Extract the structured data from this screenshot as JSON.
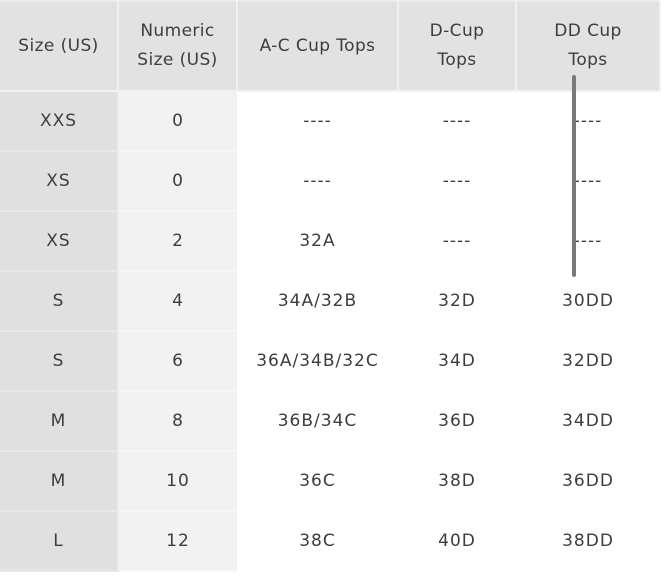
{
  "table": {
    "headers": [
      [
        "Size (US)"
      ],
      [
        "Numeric",
        "Size (US)"
      ],
      [
        "A-C Cup Tops"
      ],
      [
        "D-Cup",
        "Tops"
      ],
      [
        "DD Cup",
        "Tops"
      ]
    ],
    "rows": [
      [
        "XXS",
        "0",
        "----",
        "----",
        "----"
      ],
      [
        "XS",
        "0",
        "----",
        "----",
        "----"
      ],
      [
        "XS",
        "2",
        "32A",
        "----",
        "----"
      ],
      [
        "S",
        "4",
        "34A/32B",
        "32D",
        "30DD"
      ],
      [
        "S",
        "6",
        "36A/34B/32C",
        "34D",
        "32DD"
      ],
      [
        "M",
        "8",
        "36B/34C",
        "36D",
        "34DD"
      ],
      [
        "M",
        "10",
        "36C",
        "38D",
        "36DD"
      ],
      [
        "L",
        "12",
        "38C",
        "40D",
        "38DD"
      ]
    ]
  },
  "colors": {
    "header_bg": "#e2e2e2",
    "size_column_bg": "#e0e0e0",
    "numeric_column_bg": "#f2f2f2",
    "text": "#3d3d3d",
    "scrollbar": "#7a7a7a"
  }
}
